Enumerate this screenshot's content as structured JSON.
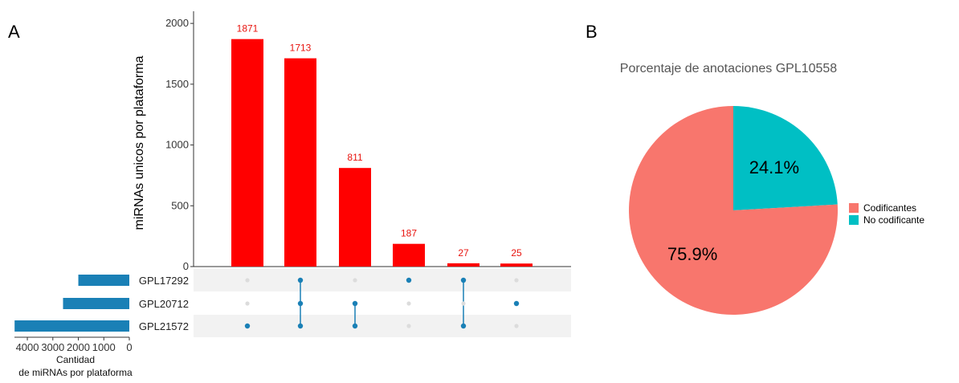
{
  "panel_a_label": "A",
  "panel_b_label": "B",
  "chart_data": [
    {
      "type": "bar",
      "subtype": "upset-intersections",
      "ylabel": "miRNAs unicos por plataforma",
      "ylim": [
        0,
        2100
      ],
      "yticks": [
        0,
        500,
        1000,
        1500,
        2000
      ],
      "values": [
        1871,
        1713,
        811,
        187,
        27,
        25
      ],
      "bar_color": "#ff0000",
      "label_color": "#e8130e",
      "sets": [
        "GPL17292",
        "GPL20712",
        "GPL21572"
      ],
      "intersections": [
        [
          "GPL21572"
        ],
        [
          "GPL17292",
          "GPL20712",
          "GPL21572"
        ],
        [
          "GPL20712",
          "GPL21572"
        ],
        [
          "GPL17292"
        ],
        [
          "GPL17292",
          "GPL21572"
        ],
        [
          "GPL20712"
        ]
      ],
      "dot_color": "#1a80b6",
      "inactive_dot_color": "#dcdcdc"
    },
    {
      "type": "bar",
      "subtype": "set-size-horizontal",
      "xlabel_line1": "Cantidad",
      "xlabel_line2": "de miRNAs por plataforma",
      "categories": [
        "GPL17292",
        "GPL20712",
        "GPL21572"
      ],
      "values": [
        2000,
        2600,
        4500
      ],
      "xticks": [
        4000,
        3000,
        2000,
        1000,
        0
      ],
      "xlim": [
        4600,
        0
      ],
      "bar_color": "#1a80b6"
    },
    {
      "type": "pie",
      "title": "Porcentaje de anotaciones GPL10558",
      "categories": [
        "Codificantes",
        "No codificante"
      ],
      "values": [
        75.9,
        24.1
      ],
      "labels": [
        "75.9%",
        "24.1%"
      ],
      "colors": [
        "#f8766d",
        "#00bfc4"
      ],
      "legend_position": "right"
    }
  ]
}
